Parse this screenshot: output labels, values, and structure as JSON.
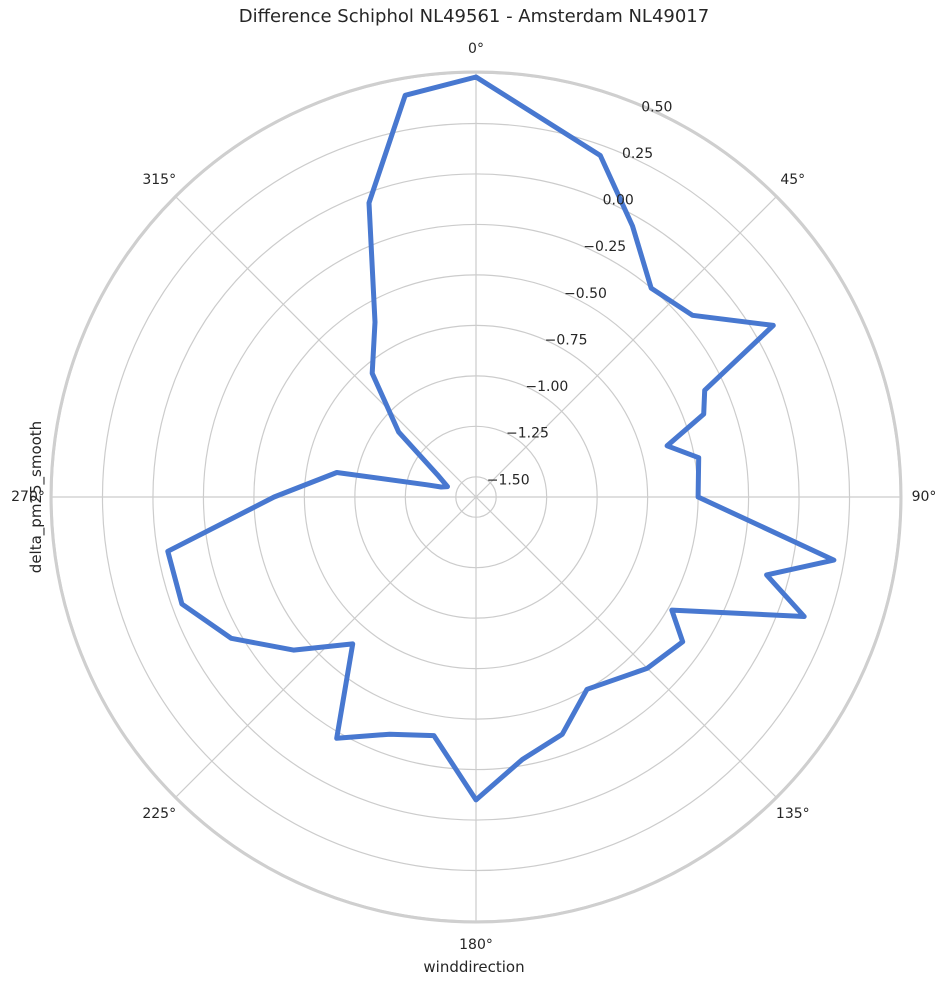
{
  "chart_data": {
    "type": "line",
    "projection": "polar",
    "title": "Difference Schiphol NL49561 - Amsterdam NL49017",
    "xlabel": "winddirection",
    "ylabel": "delta_pm25_smooth",
    "theta_tick_labels": [
      "0°",
      "45°",
      "90°",
      "135°",
      "180°",
      "225°",
      "270°",
      "315°"
    ],
    "theta_ticks_deg": [
      0,
      45,
      90,
      135,
      180,
      225,
      270,
      315
    ],
    "r_ticks": [
      -1.5,
      -1.25,
      -1.0,
      -0.75,
      -0.5,
      -0.25,
      0.0,
      0.25,
      0.5
    ],
    "r_tick_labels": [
      "−1.50",
      "−1.25",
      "−1.00",
      "−0.75",
      "−0.50",
      "−0.25",
      "0.00",
      "0.25",
      "0.50"
    ],
    "r_range": [
      -1.6,
      0.5
    ],
    "grid": true,
    "theta_direction": "clockwise",
    "theta_zero": "north",
    "series": [
      {
        "color": "#4878d0",
        "theta_deg": [
          0,
          20,
          30,
          40,
          50,
          60,
          65,
          70,
          75,
          80,
          90,
          100,
          105,
          110,
          120,
          125,
          135,
          150,
          160,
          170,
          180,
          190,
          200,
          210,
          220,
          230,
          240,
          250,
          260,
          270,
          280,
          284,
          286,
          290,
          300,
          310,
          320,
          330,
          340,
          350,
          0
        ],
        "r": [
          0.48,
          0.2,
          -0.05,
          -0.25,
          -0.2,
          0.1,
          -0.35,
          -0.4,
          -0.62,
          -0.48,
          -0.5,
          0.2,
          -0.11,
          0.13,
          -0.48,
          -0.35,
          -0.4,
          -0.5,
          -0.35,
          -0.28,
          -0.1,
          -0.4,
          -0.35,
          -0.22,
          -0.65,
          -0.42,
          -0.2,
          -0.05,
          -0.05,
          -0.6,
          -0.9,
          -1.35,
          -1.42,
          -1.45,
          -1.38,
          -1.1,
          -0.8,
          -0.6,
          -0.05,
          0.42,
          0.48
        ]
      }
    ]
  }
}
